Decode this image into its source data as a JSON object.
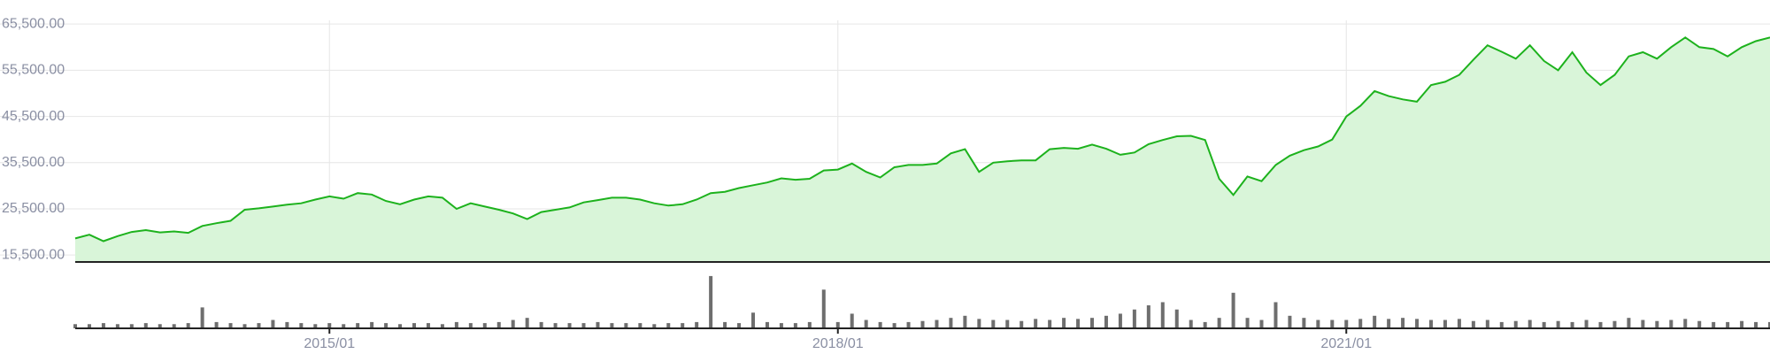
{
  "chart_data": {
    "type": "line",
    "x": [
      "2013/07",
      "2013/08",
      "2013/09",
      "2013/10",
      "2013/11",
      "2013/12",
      "2014/01",
      "2014/02",
      "2014/03",
      "2014/04",
      "2014/05",
      "2014/06",
      "2014/07",
      "2014/08",
      "2014/09",
      "2014/10",
      "2014/11",
      "2014/12",
      "2015/01",
      "2015/02",
      "2015/03",
      "2015/04",
      "2015/05",
      "2015/06",
      "2015/07",
      "2015/08",
      "2015/09",
      "2015/10",
      "2015/11",
      "2015/12",
      "2016/01",
      "2016/02",
      "2016/03",
      "2016/04",
      "2016/05",
      "2016/06",
      "2016/07",
      "2016/08",
      "2016/09",
      "2016/10",
      "2016/11",
      "2016/12",
      "2017/01",
      "2017/02",
      "2017/03",
      "2017/04",
      "2017/05",
      "2017/06",
      "2017/07",
      "2017/08",
      "2017/09",
      "2017/10",
      "2017/11",
      "2017/12",
      "2018/01",
      "2018/02",
      "2018/03",
      "2018/04",
      "2018/05",
      "2018/06",
      "2018/07",
      "2018/08",
      "2018/09",
      "2018/10",
      "2018/11",
      "2018/12",
      "2019/01",
      "2019/02",
      "2019/03",
      "2019/04",
      "2019/05",
      "2019/06",
      "2019/07",
      "2019/08",
      "2019/09",
      "2019/10",
      "2019/11",
      "2019/12",
      "2020/01",
      "2020/02",
      "2020/03",
      "2020/04",
      "2020/05",
      "2020/06",
      "2020/07",
      "2020/08",
      "2020/09",
      "2020/10",
      "2020/11",
      "2020/12",
      "2021/01",
      "2021/02",
      "2021/03",
      "2021/04",
      "2021/05",
      "2021/06",
      "2021/07",
      "2021/08",
      "2021/09",
      "2021/10",
      "2021/11",
      "2021/12",
      "2022/01",
      "2022/02",
      "2022/03",
      "2022/04",
      "2022/05",
      "2022/06",
      "2022/07",
      "2022/08",
      "2022/09",
      "2022/10",
      "2022/11",
      "2022/12",
      "2023/01",
      "2023/02",
      "2023/03",
      "2023/04",
      "2023/05",
      "2023/06",
      "2023/07"
    ],
    "values": [
      19100,
      19900,
      18500,
      19600,
      20500,
      20900,
      20400,
      20600,
      20300,
      21800,
      22400,
      22900,
      25300,
      25600,
      26000,
      26400,
      26700,
      27500,
      28200,
      27700,
      28900,
      28600,
      27200,
      26500,
      27500,
      28200,
      27900,
      25500,
      26700,
      26000,
      25300,
      24500,
      23300,
      24800,
      25300,
      25800,
      26900,
      27400,
      27900,
      27900,
      27500,
      26700,
      26200,
      26500,
      27500,
      28900,
      29200,
      30000,
      30600,
      31200,
      32100,
      31800,
      32000,
      33800,
      34000,
      35300,
      33500,
      32300,
      34500,
      35000,
      35000,
      35300,
      37500,
      38400,
      33500,
      35500,
      35800,
      36000,
      36000,
      38400,
      38700,
      38500,
      39400,
      38500,
      37200,
      37700,
      39500,
      40400,
      41200,
      41300,
      40400,
      32000,
      28500,
      32500,
      31500,
      35000,
      37000,
      38200,
      39000,
      40500,
      45500,
      47800,
      51000,
      49900,
      49200,
      48700,
      52300,
      53000,
      54500,
      57800,
      60900,
      59500,
      58000,
      60900,
      57500,
      55500,
      59400,
      55000,
      52300,
      54500,
      58500,
      59400,
      58000,
      60500,
      62600,
      60500,
      60100,
      58500,
      60500,
      61800,
      62600
    ],
    "volume": [
      4,
      4,
      5,
      4,
      4,
      5,
      4,
      4,
      5,
      20,
      6,
      5,
      4,
      5,
      8,
      6,
      5,
      4,
      5,
      4,
      5,
      6,
      5,
      4,
      5,
      5,
      4,
      6,
      5,
      5,
      6,
      8,
      10,
      6,
      5,
      5,
      5,
      6,
      5,
      5,
      5,
      4,
      5,
      5,
      6,
      50,
      6,
      5,
      15,
      6,
      5,
      5,
      6,
      37,
      6,
      14,
      8,
      6,
      5,
      6,
      7,
      8,
      10,
      12,
      9,
      8,
      8,
      7,
      9,
      8,
      10,
      9,
      10,
      12,
      14,
      18,
      22,
      25,
      18,
      8,
      6,
      10,
      34,
      10,
      8,
      25,
      12,
      10,
      8,
      8,
      8,
      9,
      12,
      9,
      10,
      9,
      8,
      8,
      9,
      7,
      8,
      6,
      7,
      8,
      6,
      7,
      6,
      8,
      6,
      7,
      10,
      8,
      7,
      8,
      9,
      7,
      6,
      6,
      7,
      6,
      6
    ],
    "volume_ylim": [
      0,
      55
    ],
    "color": "#1db21d",
    "fill_color": "#d9f5d9",
    "volume_color": "#6e6e6e",
    "ylim": [
      14000,
      66300
    ],
    "yticks": [
      {
        "value": 15500,
        "label": "15,500.00"
      },
      {
        "value": 25500,
        "label": "25,500.00"
      },
      {
        "value": 35500,
        "label": "35,500.00"
      },
      {
        "value": 45500,
        "label": "45,500.00"
      },
      {
        "value": 55500,
        "label": "55,500.00"
      },
      {
        "value": 65500,
        "label": "65,500.00"
      }
    ],
    "xticks": [
      "2015/01",
      "2018/01",
      "2021/01"
    ],
    "grid": true
  }
}
